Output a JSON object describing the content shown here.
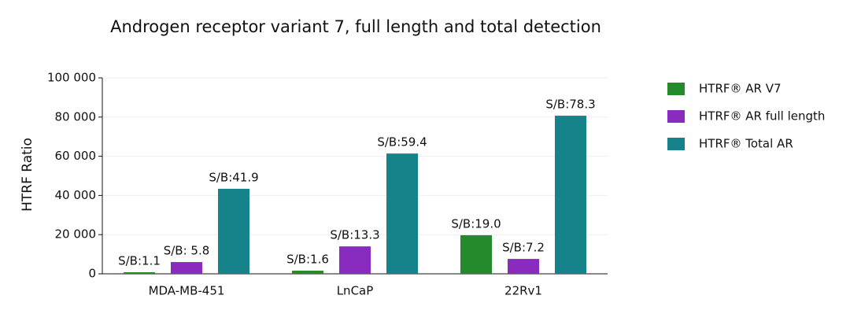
{
  "chart_data": {
    "type": "bar",
    "title": "Androgen receptor variant 7, full length and total detection",
    "y_label": "HTRF Ratio",
    "categories": [
      "MDA-MB-451",
      "LnCaP",
      "22Rv1"
    ],
    "series": [
      {
        "name": "HTRF® AR V7",
        "color": "#258a2c",
        "values": [
          800,
          1600,
          19700
        ],
        "annotations": [
          "S/B:1.1",
          "S/B:1.6",
          "S/B:19.0"
        ]
      },
      {
        "name": "HTRF® AR full length",
        "color": "#8a2bbf",
        "values": [
          6000,
          14000,
          7600
        ],
        "annotations": [
          "S/B: 5.8",
          "S/B:13.3",
          "S/B:7.2"
        ]
      },
      {
        "name": "HTRF® Total AR",
        "color": "#16838a",
        "values": [
          43400,
          61400,
          80700
        ],
        "annotations": [
          "S/B:41.9",
          "S/B:59.4",
          "S/B:78.3"
        ]
      }
    ],
    "ylim": [
      0,
      100000
    ],
    "yticks": [
      0,
      {
        "value": 20000,
        "label": "20 000"
      },
      {
        "value": 40000,
        "label": "40 000"
      },
      {
        "value": 60000,
        "label": "60 000"
      },
      {
        "value": 80000,
        "label": "80 000"
      },
      {
        "value": 100000,
        "label": "100 000"
      }
    ],
    "grid": true,
    "legend": "right"
  }
}
